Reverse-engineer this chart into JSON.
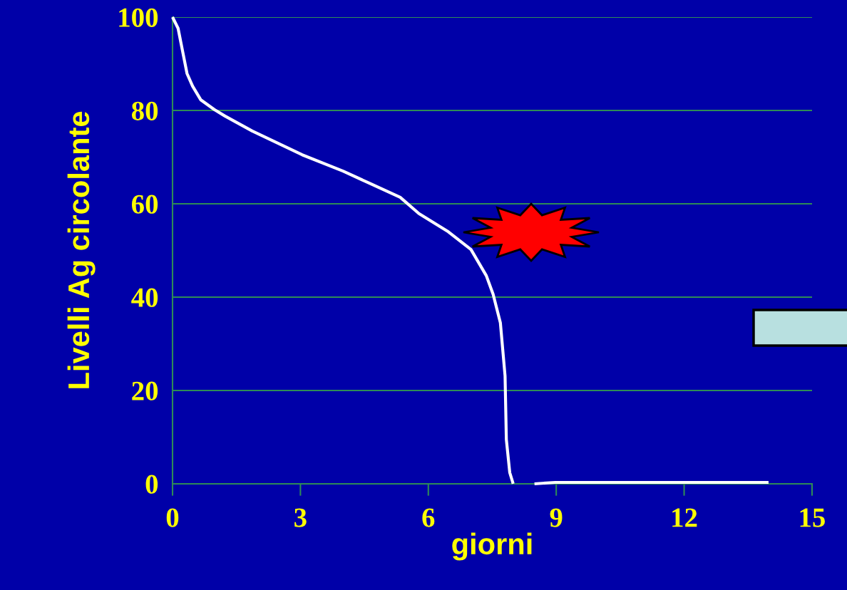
{
  "chart_data": {
    "type": "line",
    "xlabel": "giorni",
    "ylabel": "Livelli Ag circolante",
    "series": [
      {
        "color": "#ffffff",
        "x": [
          0,
          0.13,
          0.34,
          0.47,
          0.66,
          0.98,
          1.23,
          1.87,
          3.04,
          4.0,
          5.34,
          5.78,
          6.47,
          7.0,
          7.36,
          7.52,
          7.69,
          7.8,
          7.83,
          7.91,
          7.99
        ],
        "values": [
          100,
          97.6,
          87.9,
          85.2,
          82.3,
          80.2,
          78.8,
          75.6,
          70.5,
          67.0,
          61.4,
          57.9,
          54.0,
          50.2,
          44.6,
          40.6,
          34.5,
          23.1,
          9.5,
          2.4,
          0
        ]
      },
      {
        "color": "#ffffff",
        "x": [
          8.49,
          8.98,
          13.98
        ],
        "values": [
          0,
          0.3,
          0.3
        ]
      }
    ],
    "xlim": [
      0,
      15
    ],
    "xticks": [
      0,
      3,
      6,
      9,
      12,
      15
    ],
    "ylim": [
      0,
      100
    ],
    "yticks": [
      0,
      20,
      40,
      60,
      80,
      100
    ],
    "grid": "y",
    "legend": false,
    "marker": "none",
    "line_style": "solid"
  }
}
